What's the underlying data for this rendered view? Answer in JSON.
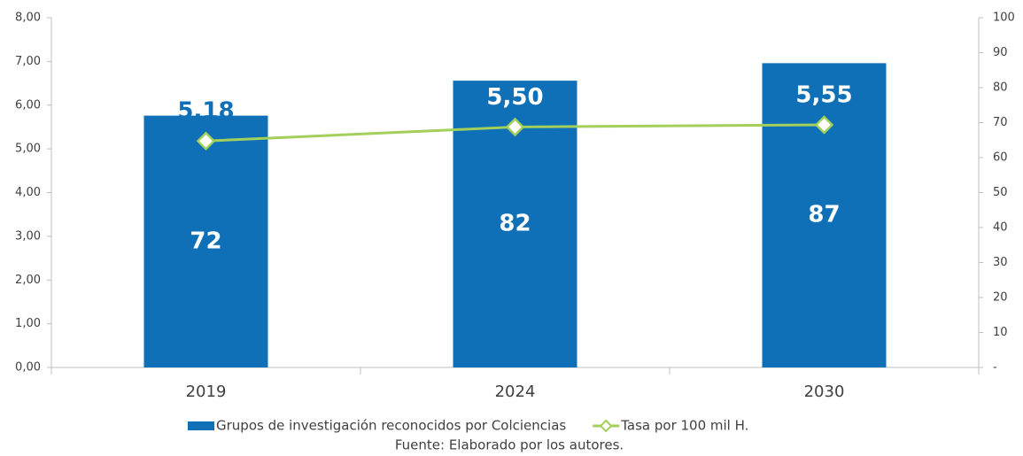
{
  "chart_data": {
    "type": "bar-line",
    "categories": [
      "2019",
      "2024",
      "2030"
    ],
    "series": [
      {
        "name": "Grupos de investigación reconocidos por Colciencias",
        "type": "bar",
        "axis": "y2",
        "color": "#0f70b7",
        "values": [
          72,
          82,
          87
        ]
      },
      {
        "name": "Tasa por 100 mil H.",
        "type": "line",
        "axis": "y",
        "color": "#a3cf5b",
        "values": [
          5.18,
          5.5,
          5.55
        ],
        "value_labels": [
          "5,18",
          "5,50",
          "5,55"
        ]
      }
    ],
    "ylim": [
      0,
      8
    ],
    "yticks": [
      {
        "value": 0,
        "label": "0,00"
      },
      {
        "value": 1,
        "label": "1,00"
      },
      {
        "value": 2,
        "label": "2,00"
      },
      {
        "value": 3,
        "label": "3,00"
      },
      {
        "value": 4,
        "label": "4,00"
      },
      {
        "value": 5,
        "label": "5,00"
      },
      {
        "value": 6,
        "label": "6,00"
      },
      {
        "value": 7,
        "label": "7,00"
      },
      {
        "value": 8,
        "label": "8,00"
      }
    ],
    "y2lim": [
      0,
      100
    ],
    "y2ticks": [
      {
        "value": 0,
        "label": "-"
      },
      10,
      20,
      30,
      40,
      50,
      60,
      70,
      80,
      90,
      100
    ],
    "legend": "bottom",
    "source": "Fuente: Elaborado por los autores."
  }
}
